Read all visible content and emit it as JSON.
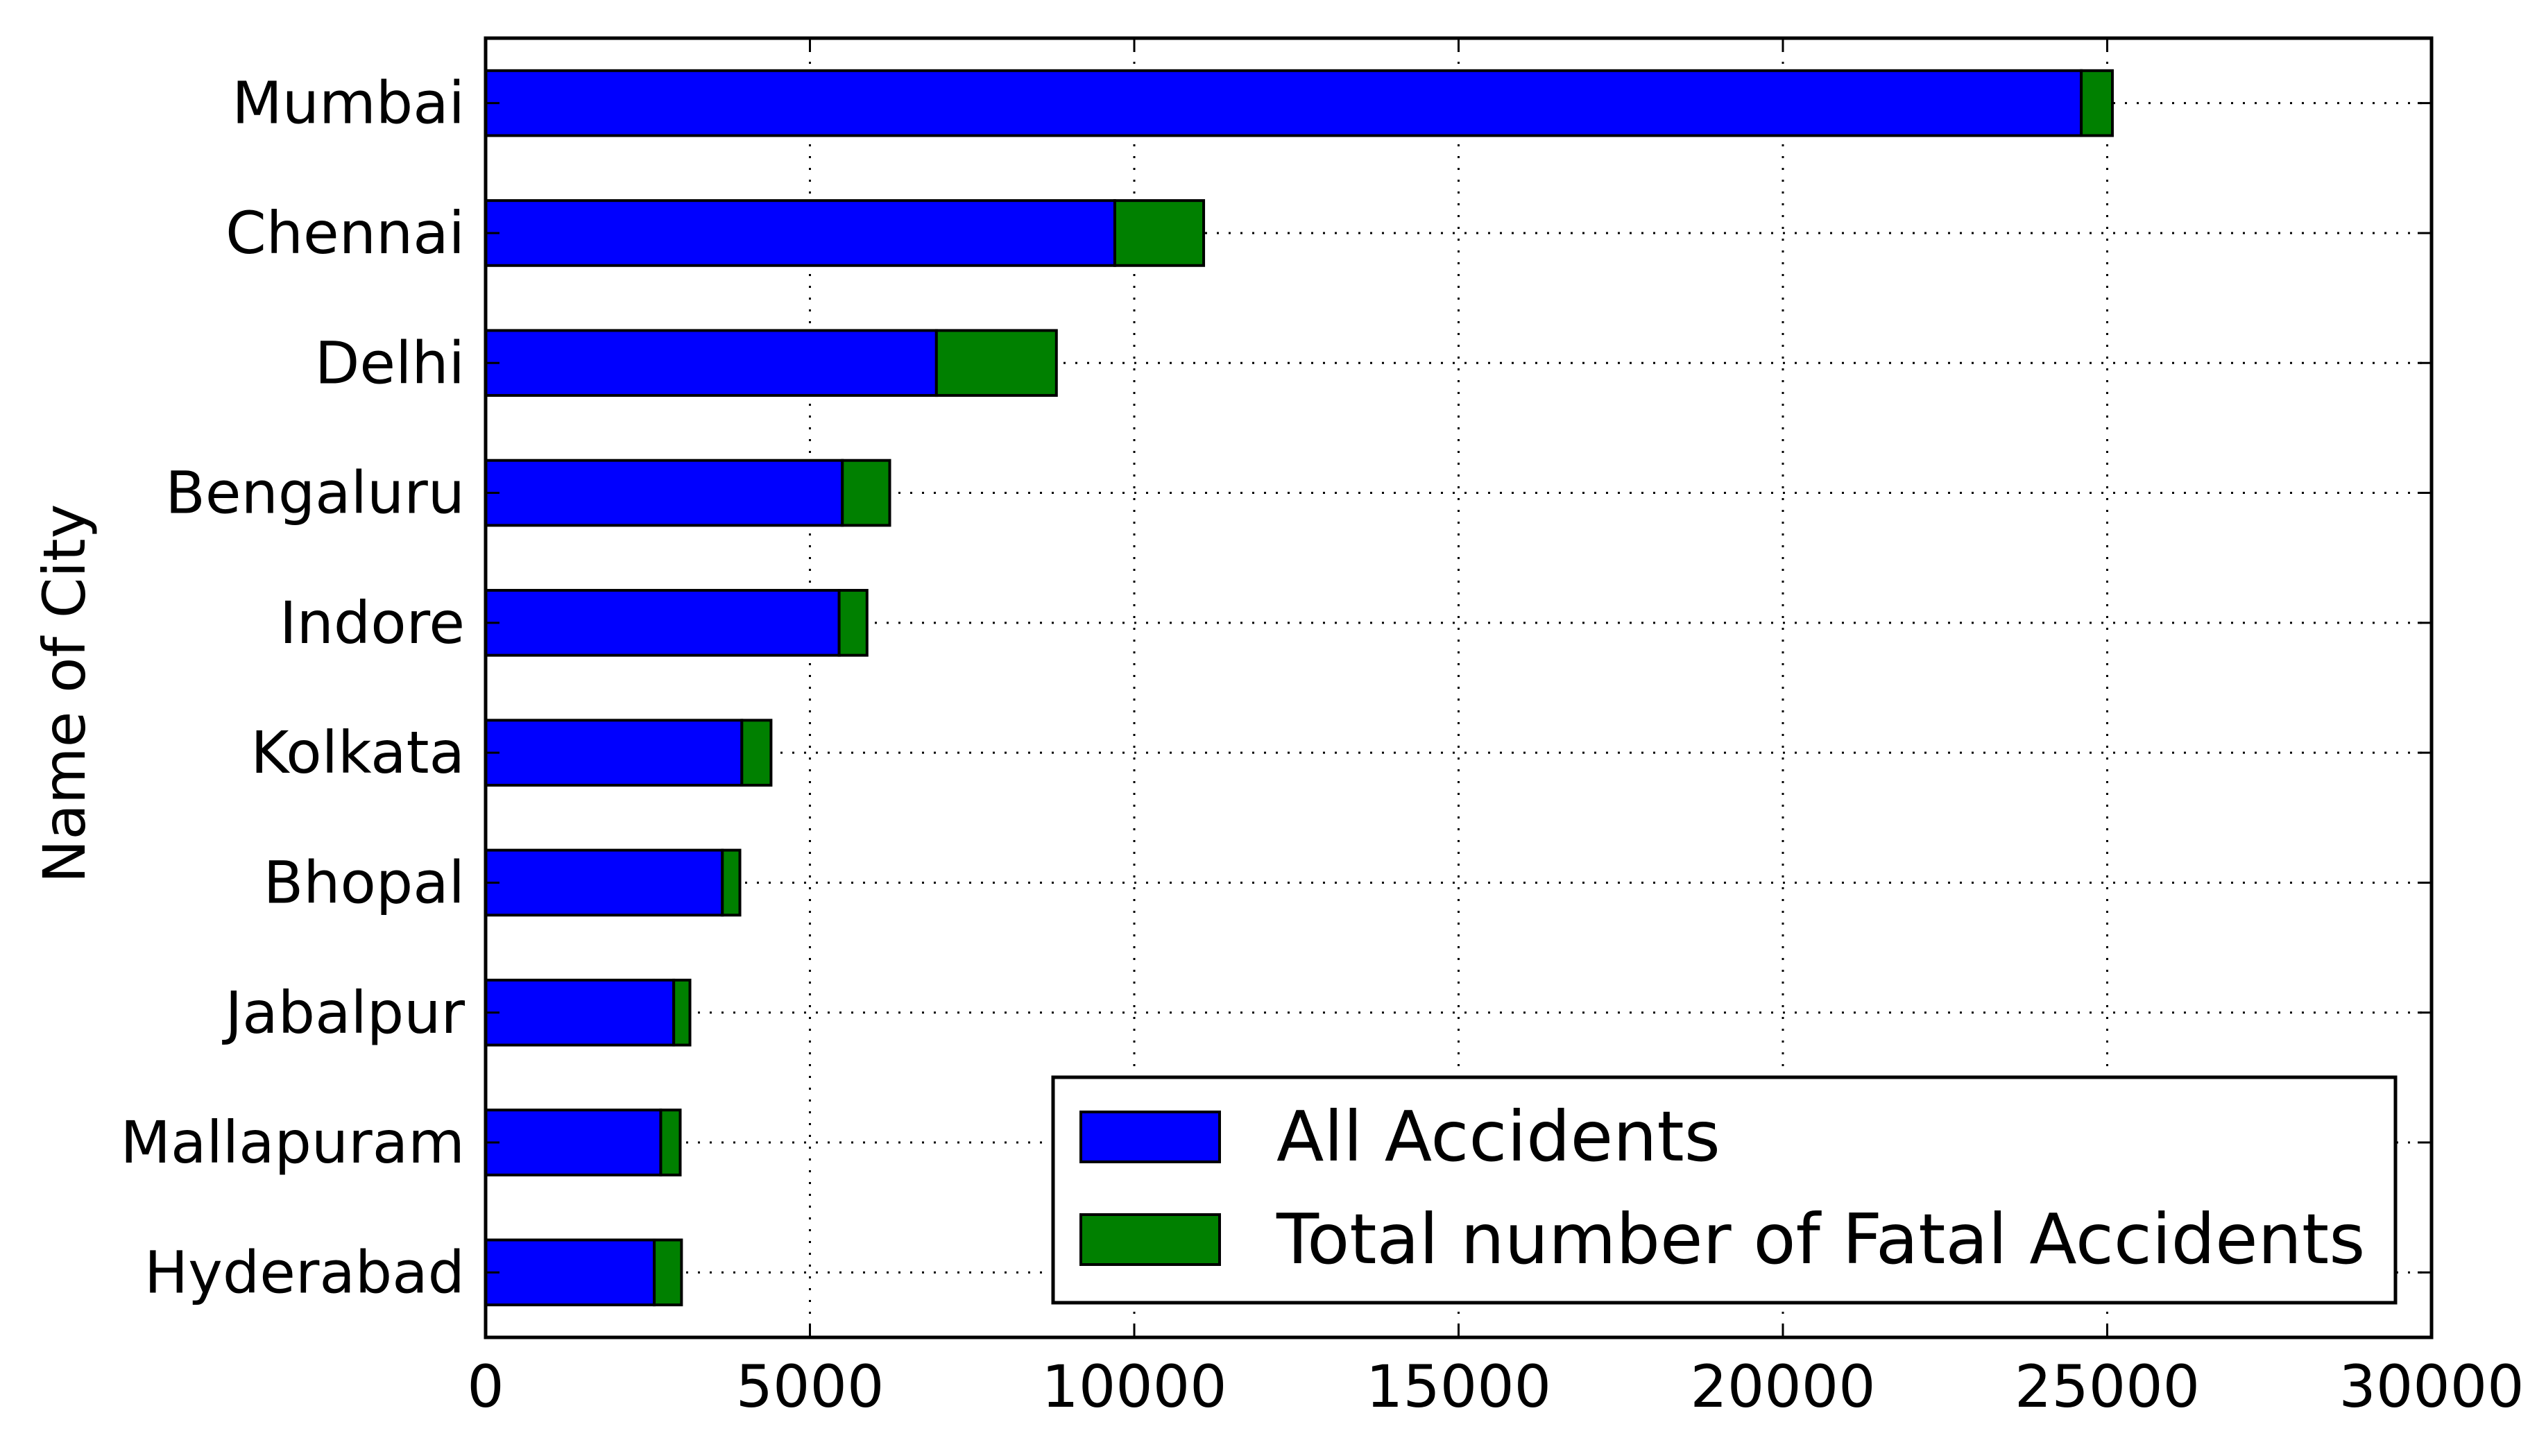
{
  "chart_data": {
    "type": "bar",
    "orientation": "horizontal",
    "stacked": true,
    "title": "",
    "xlabel": "",
    "ylabel": "Name of City",
    "categories": [
      "Mumbai",
      "Chennai",
      "Delhi",
      "Bengaluru",
      "Indore",
      "Kolkata",
      "Bhopal",
      "Jabalpur",
      "Mallapuram",
      "Hyderabad"
    ],
    "series": [
      {
        "name": "All Accidents",
        "color": "#0000ff",
        "values": [
          24600,
          9700,
          6950,
          5500,
          5450,
          3950,
          3650,
          2900,
          2700,
          2600
        ]
      },
      {
        "name": "Total number of Fatal Accidents",
        "color": "#008000",
        "values": [
          480,
          1370,
          1850,
          730,
          430,
          450,
          270,
          250,
          300,
          420
        ]
      }
    ],
    "xlim": [
      0,
      30000
    ],
    "x_ticks": [
      "0",
      "5000",
      "10000",
      "15000",
      "20000",
      "25000",
      "30000"
    ],
    "grid": true,
    "legend_position": "lower right"
  }
}
